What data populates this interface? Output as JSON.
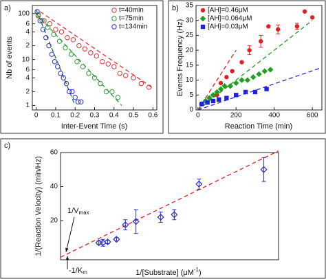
{
  "chart_data": [
    {
      "type": "scatter",
      "label": "a)",
      "xlabel": "Inter-Event Time (s)",
      "ylabel": "Nb of events",
      "log_y": true,
      "xlim": [
        -0.02,
        0.62
      ],
      "ylim": [
        0.8,
        150
      ],
      "xticks": [
        0,
        0.1,
        0.2,
        0.3,
        0.4,
        0.5,
        0.6
      ],
      "yticks": [
        1,
        2,
        4,
        6,
        10,
        {
          "value": 20,
          "label": "2"
        },
        {
          "value": 40,
          "label": "4"
        },
        {
          "value": 60,
          "label": "6"
        },
        100
      ],
      "legend": "upper right",
      "series": [
        {
          "name": "t=40min",
          "color": "#e03030",
          "marker": "open-circle",
          "x": [
            0.01,
            0.04,
            0.07,
            0.1,
            0.13,
            0.16,
            0.19,
            0.22,
            0.25,
            0.28,
            0.31,
            0.34,
            0.37,
            0.4,
            0.43,
            0.46,
            0.5,
            0.54,
            0.58
          ],
          "values": [
            90,
            70,
            60,
            45,
            40,
            30,
            27,
            20,
            17,
            14,
            12,
            9,
            8,
            7,
            5,
            4.5,
            4,
            3,
            2.5
          ]
        },
        {
          "name": "t=75min",
          "color": "#2a9a3a",
          "marker": "open-circle",
          "x": [
            0.01,
            0.03,
            0.06,
            0.09,
            0.12,
            0.15,
            0.18,
            0.21,
            0.24,
            0.27,
            0.3,
            0.33,
            0.36,
            0.39,
            0.42
          ],
          "values": [
            95,
            70,
            50,
            35,
            25,
            18,
            13,
            9,
            7,
            5,
            4,
            3,
            2,
            2,
            1.5
          ]
        },
        {
          "name": "t=134min",
          "color": "#2a2ad0",
          "marker": "open-circle",
          "x": [
            0.005,
            0.02,
            0.035,
            0.05,
            0.065,
            0.08,
            0.095,
            0.11,
            0.125,
            0.14,
            0.155,
            0.17,
            0.185,
            0.2,
            0.215,
            0.23
          ],
          "values": [
            110,
            70,
            45,
            30,
            20,
            13,
            9,
            7,
            5,
            4,
            3,
            2,
            2,
            1.5,
            1.2,
            1.2
          ]
        }
      ],
      "fits": [
        {
          "color": "#e03030",
          "x": [
            0.02,
            0.6
          ],
          "values": [
            110,
            2.4
          ]
        },
        {
          "color": "#2a9a3a",
          "x": [
            0,
            0.44
          ],
          "values": [
            100,
            1
          ]
        },
        {
          "color": "#206a30",
          "x": [
            0,
            0.2
          ],
          "values": [
            120,
            1
          ]
        }
      ]
    },
    {
      "type": "scatter",
      "label": "b)",
      "xlabel": "Reaction Time  (min)",
      "ylabel": "Events Frequency (Hz)",
      "xlim": [
        -10,
        650
      ],
      "ylim": [
        0,
        35
      ],
      "xticks": [
        0,
        200,
        400,
        600
      ],
      "yticks": [
        0,
        5,
        10,
        15,
        20,
        25,
        30,
        35
      ],
      "legend": "upper left",
      "series": [
        {
          "name": "[AH]=0.46μM",
          "color": "#e02020",
          "marker": "circle",
          "x": [
            20,
            40,
            60,
            80,
            100,
            120,
            150,
            180,
            230,
            270,
            330,
            370,
            420,
            520,
            560,
            600
          ],
          "values": [
            2,
            3,
            4,
            5,
            5,
            9,
            11,
            13,
            16,
            20,
            23,
            28,
            27,
            28,
            33,
            31
          ],
          "errors": [
            null,
            null,
            null,
            null,
            null,
            null,
            null,
            null,
            null,
            1.5,
            2,
            null,
            1.5,
            1,
            null,
            null
          ]
        },
        {
          "name": "[AH]=0.064μM",
          "color": "#20a020",
          "marker": "diamond",
          "x": [
            20,
            40,
            60,
            80,
            100,
            120,
            140,
            170,
            200,
            230,
            260,
            290,
            320,
            350,
            380
          ],
          "values": [
            2,
            3,
            4,
            5,
            6,
            7,
            8,
            8,
            9,
            10,
            10,
            11,
            12,
            13,
            13.5
          ]
        },
        {
          "name": "[AH]=0.03μM",
          "color": "#2020e0",
          "marker": "square",
          "x": [
            20,
            50,
            80,
            110,
            150,
            200,
            250,
            300,
            360
          ],
          "values": [
            2,
            2.5,
            3,
            3.5,
            4,
            5,
            6,
            6,
            7
          ]
        }
      ],
      "fits": [
        {
          "color": "#e02020",
          "x": [
            0,
            200
          ],
          "values": [
            0,
            20
          ]
        },
        {
          "color": "#20a020",
          "x": [
            0,
            600
          ],
          "values": [
            0,
            30
          ]
        },
        {
          "color": "#2020e0",
          "x": [
            0,
            640
          ],
          "values": [
            0,
            14
          ]
        }
      ]
    },
    {
      "type": "scatter",
      "label": "c)",
      "ylabel": "1/(Reaction Velocity) (min/Hz)",
      "xlabel": {
        "text": "1/[Substrate]  (μM",
        "sup": "-1",
        "end": ")"
      },
      "xlim": [
        -2,
        35
      ],
      "ylim": [
        -3,
        60
      ],
      "yticks": [
        20,
        40,
        60
      ],
      "annotations": [
        {
          "text": "1/V",
          "sub": "max"
        },
        {
          "text": "-1/K",
          "sub": "m"
        }
      ],
      "series": [
        {
          "color": "#2a2ad0",
          "marker": "open-diamond",
          "x": [
            4.5,
            5.2,
            6,
            7.5,
            9,
            10.8,
            15,
            17.3,
            21.5,
            32.5
          ],
          "values": [
            7,
            7,
            7.5,
            9,
            17.5,
            19.5,
            22,
            23.5,
            41.5,
            50
          ],
          "errors": [
            1,
            2,
            1,
            1,
            3,
            7,
            3,
            3,
            3,
            7
          ]
        }
      ],
      "fits": [
        {
          "color": "#e02020",
          "x": [
            -2,
            35
          ],
          "values": [
            -1.5,
            61
          ]
        }
      ]
    }
  ]
}
